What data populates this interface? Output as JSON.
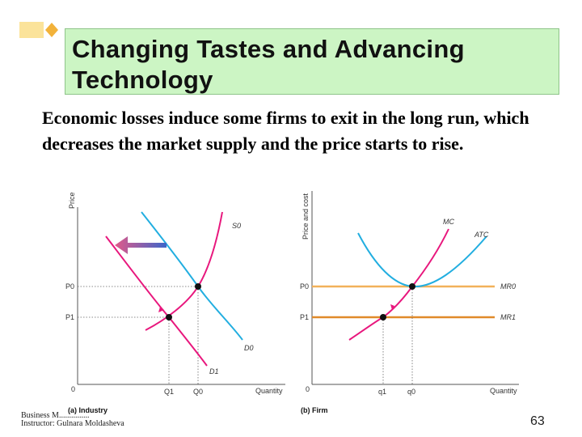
{
  "slide": {
    "title": "Changing Tastes and Advancing Technology",
    "body": "Economic losses induce some firms to exit in the long run, which decreases the market supply and the price starts to rise.",
    "footer_line1": "Business M...............",
    "footer_line2": "Instructor: Gulnara Moldasheva",
    "page_number": "63"
  },
  "industry": {
    "y_axis_label": "Price",
    "x_axis_label": "Quantity",
    "origin": "0",
    "panel_label": "(a) Industry",
    "supply_label": "S0",
    "demand0_label": "D0",
    "demand1_label": "D1",
    "p0": "P0",
    "p1": "P1",
    "q0": "Q0",
    "q1": "Q1"
  },
  "firm": {
    "y_axis_label": "Price and cost",
    "x_axis_label": "Quantity",
    "origin": "0",
    "panel_label": "(b) Firm",
    "mc_label": "MC",
    "atc_label": "ATC",
    "mr0_label": "MR0",
    "mr1_label": "MR1",
    "p0": "P0",
    "p1": "P1",
    "q0": "q0",
    "q1": "q1"
  },
  "colors": {
    "supply": "#e8177d",
    "demand": "#22aee0",
    "mr0": "#f2b15a",
    "mr1": "#e08a2a",
    "axis": "#555555",
    "shift_arrow_start": "#3d66c9",
    "shift_arrow_end": "#e05a8a"
  }
}
